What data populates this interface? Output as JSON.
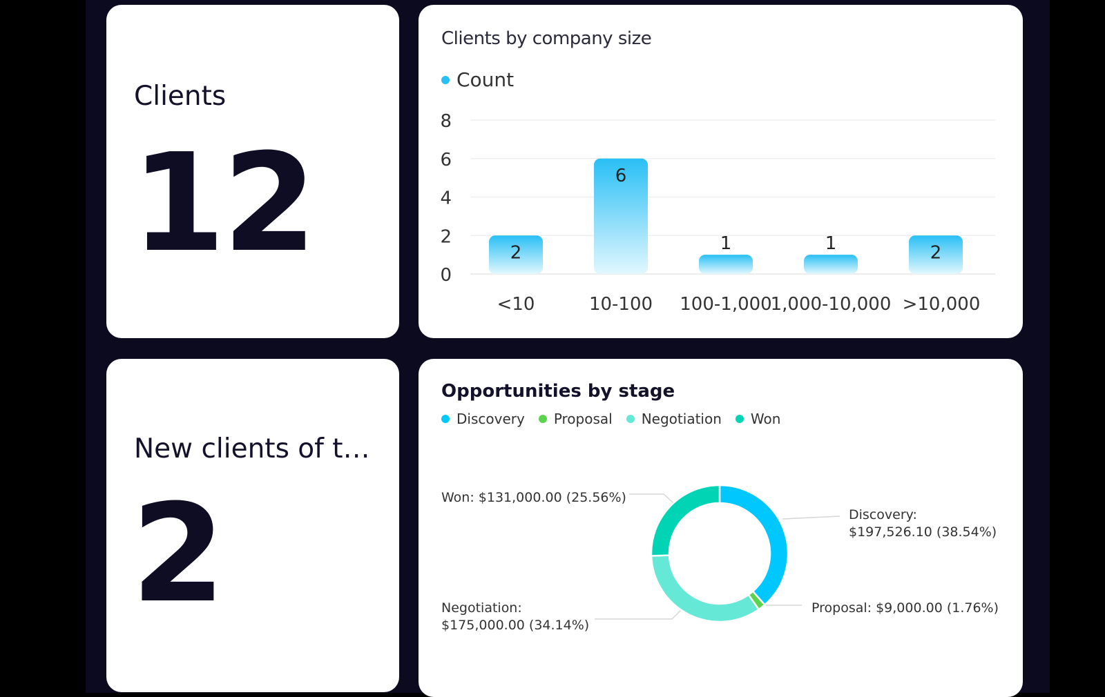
{
  "kpis": {
    "clients": {
      "label": "Clients",
      "value": "12"
    },
    "new_clients": {
      "label": "New clients of th…",
      "value": "2"
    }
  },
  "company_chart": {
    "title": "Clients by company size",
    "legend": [
      {
        "label": "Count",
        "color": "#29bff5"
      }
    ]
  },
  "stage_chart": {
    "title": "Opportunities by stage",
    "legend": [
      {
        "label": "Discovery",
        "color": "#00c8ff"
      },
      {
        "label": "Proposal",
        "color": "#5ad44e"
      },
      {
        "label": "Negotiation",
        "color": "#66e8d6"
      },
      {
        "label": "Won",
        "color": "#00d4b4"
      }
    ],
    "slice_labels": {
      "won": "Won: $131,000.00 (25.56%)",
      "discovery_1": "Discovery:",
      "discovery_2": "$197,526.10 (38.54%)",
      "proposal": "Proposal: $9,000.00 (1.76%)",
      "negotiation_1": "Negotiation:",
      "negotiation_2": "$175,000.00 (34.14%)"
    }
  },
  "chart_data": [
    {
      "type": "bar",
      "title": "Clients by company size",
      "categories": [
        "<10",
        "10-100",
        "100-1,000",
        "1,000-10,000",
        ">10,000"
      ],
      "series": [
        {
          "name": "Count",
          "values": [
            2,
            6,
            1,
            1,
            2
          ]
        }
      ],
      "ylim": [
        0,
        8
      ],
      "yticks": [
        0,
        2,
        4,
        6,
        8
      ],
      "grid": true,
      "legend": "top-left",
      "data_labels": true
    },
    {
      "type": "pie",
      "title": "Opportunities by stage",
      "donut": true,
      "slices": [
        {
          "name": "Discovery",
          "value": 197526.1,
          "percent": 38.54,
          "color": "#00c8ff"
        },
        {
          "name": "Proposal",
          "value": 9000.0,
          "percent": 1.76,
          "color": "#5ad44e"
        },
        {
          "name": "Negotiation",
          "value": 175000.0,
          "percent": 34.14,
          "color": "#66e8d6"
        },
        {
          "name": "Won",
          "value": 131000.0,
          "percent": 25.56,
          "color": "#00d4b4"
        }
      ],
      "legend": "top-left"
    }
  ]
}
